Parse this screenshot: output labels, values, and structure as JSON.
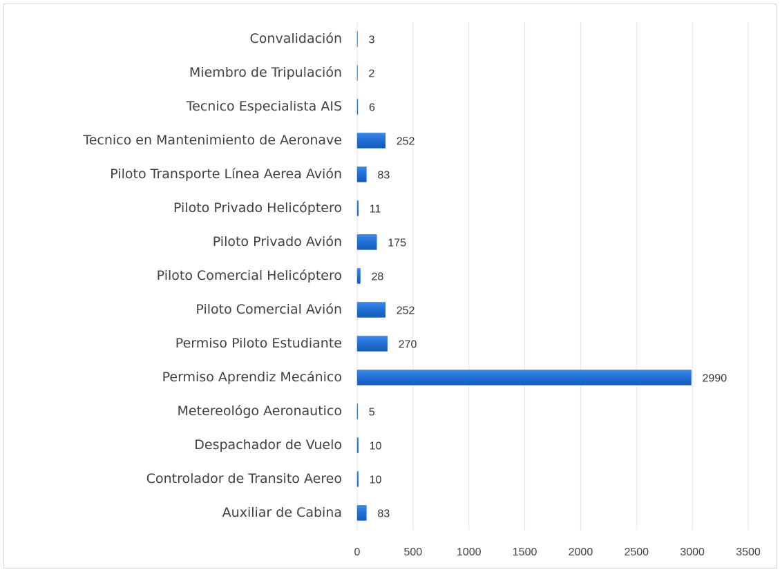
{
  "chart_data": {
    "type": "hbar",
    "categories": [
      "Convalidación",
      "Miembro de Tripulación",
      "Tecnico Especialista AIS",
      "Tecnico en Mantenimiento de Aeronave",
      "Piloto Transporte Línea Aerea Avión",
      "Piloto Privado Helicóptero",
      "Piloto Privado Avión",
      "Piloto Comercial Helicóptero",
      "Piloto Comercial Avión",
      "Permiso Piloto Estudiante",
      "Permiso Aprendiz Mecánico",
      "Metereológo Aeronautico",
      "Despachador de Vuelo",
      "Controlador de Transito Aereo",
      "Auxiliar de Cabina"
    ],
    "values": [
      3,
      2,
      6,
      252,
      83,
      11,
      175,
      28,
      252,
      270,
      2990,
      5,
      10,
      10,
      83
    ],
    "color": "#2a74d6",
    "xlim": [
      0,
      3500
    ],
    "xticks": [
      0,
      500,
      1000,
      1500,
      2000,
      2500,
      3000,
      3500
    ],
    "grid": true
  }
}
